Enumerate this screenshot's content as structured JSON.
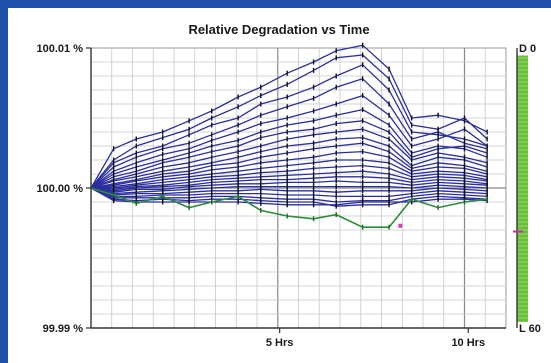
{
  "window": {
    "background": "#1f4fa8",
    "panel": "#ffffff"
  },
  "chart_data": {
    "type": "line",
    "title": "Relative Degradation vs Time",
    "xlabel": "",
    "ylabel": "",
    "x_unit_note": "hours",
    "xlim": [
      0,
      11
    ],
    "ylim": [
      99.99,
      100.01
    ],
    "x_ticks": [
      {
        "value": 5,
        "label": "5 Hrs"
      },
      {
        "value": 10,
        "label": "10 Hrs"
      }
    ],
    "y_ticks": [
      {
        "value": 100.01,
        "label": "100.01 %"
      },
      {
        "value": 100.0,
        "label": "100.00 %"
      },
      {
        "value": 99.99,
        "label": "99.99 %"
      }
    ],
    "grid": true,
    "x": [
      0,
      0.6,
      1.2,
      1.9,
      2.6,
      3.2,
      3.9,
      4.5,
      5.2,
      5.9,
      6.5,
      7.2,
      7.9,
      8.5,
      9.2,
      9.9,
      10.5
    ],
    "series_color": "#2b2f9e",
    "highlight_color": "#2e8b3a",
    "series": [
      {
        "values": [
          100.0,
          100.0028,
          100.0035,
          100.004,
          100.0048,
          100.0055,
          100.0065,
          100.0072,
          100.0082,
          100.009,
          100.0098,
          100.0102,
          100.0085,
          100.005,
          100.0052,
          100.0048,
          100.004
        ]
      },
      {
        "values": [
          100.0,
          100.002,
          100.003,
          100.0036,
          100.0042,
          100.005,
          100.0058,
          100.0066,
          100.0074,
          100.0084,
          100.0093,
          100.0095,
          100.0078,
          100.0045,
          100.0042,
          100.005,
          100.0035
        ]
      },
      {
        "values": [
          100.0,
          100.0018,
          100.0025,
          100.003,
          100.0038,
          100.0045,
          100.005,
          100.006,
          100.0065,
          100.0072,
          100.008,
          100.0088,
          100.007,
          100.004,
          100.0038,
          100.0035,
          100.003
        ]
      },
      {
        "values": [
          100.0,
          100.0015,
          100.0022,
          100.0028,
          100.0032,
          100.0038,
          100.0045,
          100.0052,
          100.0058,
          100.0064,
          100.0072,
          100.0078,
          100.006,
          100.0035,
          100.004,
          100.0032,
          100.0028
        ]
      },
      {
        "values": [
          100.0,
          100.0012,
          100.0018,
          100.0024,
          100.0028,
          100.0034,
          100.004,
          100.0046,
          100.005,
          100.0055,
          100.006,
          100.0066,
          100.0052,
          100.003,
          100.0035,
          100.0042,
          100.003
        ]
      },
      {
        "values": [
          100.0,
          100.001,
          100.0015,
          100.002,
          100.0025,
          100.003,
          100.0034,
          100.004,
          100.0045,
          100.0048,
          100.0052,
          100.0056,
          100.0045,
          100.0025,
          100.003,
          100.0028,
          100.0022
        ]
      },
      {
        "values": [
          100.0,
          100.0008,
          100.0012,
          100.0018,
          100.0022,
          100.0026,
          100.003,
          100.0036,
          100.004,
          100.0042,
          100.0046,
          100.0048,
          100.004,
          100.0022,
          100.0028,
          100.003,
          100.0025
        ]
      },
      {
        "values": [
          100.0,
          100.0006,
          100.001,
          100.0015,
          100.0018,
          100.0022,
          100.0026,
          100.003,
          100.0035,
          100.0038,
          100.004,
          100.0042,
          100.0035,
          100.002,
          100.0025,
          100.0022,
          100.0018
        ]
      },
      {
        "values": [
          100.0,
          100.0005,
          100.0008,
          100.0012,
          100.0015,
          100.0018,
          100.0022,
          100.0026,
          100.003,
          100.0032,
          100.0035,
          100.0036,
          100.003,
          100.0016,
          100.0022,
          100.002,
          100.0015
        ]
      },
      {
        "values": [
          100.0,
          100.0003,
          100.0006,
          100.001,
          100.0012,
          100.0016,
          100.0018,
          100.0022,
          100.0025,
          100.0028,
          100.003,
          100.0032,
          100.0026,
          100.0014,
          100.0018,
          100.0016,
          100.0012
        ]
      },
      {
        "values": [
          100.0,
          100.0002,
          100.0005,
          100.0008,
          100.001,
          100.0013,
          100.0015,
          100.0018,
          100.002,
          100.0022,
          100.0025,
          100.0026,
          100.0022,
          100.0012,
          100.0015,
          100.0014,
          100.001
        ]
      },
      {
        "values": [
          100.0,
          100.0001,
          100.0003,
          100.0006,
          100.0008,
          100.001,
          100.0012,
          100.0014,
          100.0016,
          100.0018,
          100.002,
          100.002,
          100.0018,
          100.001,
          100.0012,
          100.0011,
          100.0008
        ]
      },
      {
        "values": [
          100.0,
          100.0,
          100.0002,
          100.0004,
          100.0006,
          100.0008,
          100.0009,
          100.0011,
          100.0012,
          100.0014,
          100.0015,
          100.0016,
          100.0014,
          100.0008,
          100.001,
          100.0009,
          100.0006
        ]
      },
      {
        "values": [
          100.0,
          99.9999,
          100.0001,
          100.0002,
          100.0004,
          100.0006,
          100.0007,
          100.0008,
          100.0009,
          100.001,
          100.0011,
          100.0012,
          100.001,
          100.0006,
          100.0008,
          100.0007,
          100.0005
        ]
      },
      {
        "values": [
          100.0,
          99.9998,
          100.0,
          100.0001,
          100.0002,
          100.0004,
          100.0005,
          100.0006,
          100.0006,
          100.0007,
          100.0008,
          100.0008,
          100.0007,
          100.0004,
          100.0006,
          100.0005,
          100.0003
        ]
      },
      {
        "values": [
          100.0,
          99.9997,
          99.9999,
          99.9999,
          100.0001,
          100.0002,
          100.0003,
          100.0003,
          100.0004,
          100.0004,
          100.0005,
          100.0004,
          100.0004,
          100.0002,
          100.0004,
          100.0003,
          100.0002
        ]
      },
      {
        "values": [
          100.0,
          99.9996,
          99.9997,
          99.9998,
          99.9999,
          100.0,
          100.0001,
          100.0001,
          100.0001,
          100.0001,
          100.0001,
          100.0001,
          100.0001,
          100.0,
          100.0002,
          100.0001,
          100.0
        ]
      },
      {
        "values": [
          100.0,
          99.9995,
          99.9996,
          99.9996,
          99.9997,
          99.9998,
          99.9998,
          99.9999,
          99.9998,
          99.9998,
          99.9997,
          99.9998,
          99.9998,
          99.9998,
          100.0,
          99.9999,
          99.9998
        ]
      },
      {
        "values": [
          100.0,
          99.9994,
          99.9994,
          99.9995,
          99.9995,
          99.9996,
          99.9996,
          99.9996,
          99.9995,
          99.9995,
          99.9994,
          99.9994,
          99.9994,
          99.9996,
          99.9998,
          99.9997,
          99.9996
        ]
      },
      {
        "values": [
          100.0,
          99.9993,
          99.9993,
          99.9993,
          99.9993,
          99.9994,
          99.9994,
          99.9993,
          99.9992,
          99.9992,
          99.999,
          99.9991,
          99.9991,
          99.9994,
          99.9996,
          99.9995,
          99.9994
        ]
      },
      {
        "values": [
          100.0,
          99.9992,
          99.9991,
          99.9992,
          99.9991,
          99.9992,
          99.9992,
          99.9991,
          99.999,
          99.999,
          99.9987,
          99.9988,
          99.9988,
          99.9992,
          99.9994,
          99.9993,
          99.9992
        ]
      },
      {
        "values": [
          100.0,
          99.9991,
          99.999,
          99.999,
          99.999,
          99.999,
          99.999,
          99.9989,
          99.9988,
          99.9988,
          99.9988,
          99.999,
          99.999,
          99.999,
          99.9992,
          99.9992,
          99.9991
        ]
      }
    ],
    "highlight_series": {
      "values": [
        100.0,
        99.9995,
        99.9989,
        99.9994,
        99.9986,
        99.999,
        99.9994,
        99.9984,
        99.998,
        99.9978,
        99.9981,
        99.9972,
        99.9972,
        99.9992,
        99.9986,
        99.999,
        99.9992
      ]
    },
    "marker_point": {
      "x": 8.2,
      "y": 99.9973,
      "color": "#d040c0"
    },
    "side_bar": {
      "top_label": "D 0",
      "bottom_label": "L 60",
      "color": "#7ecf4a",
      "marker_color": "#c0309a",
      "marker_fraction": 0.66
    }
  }
}
